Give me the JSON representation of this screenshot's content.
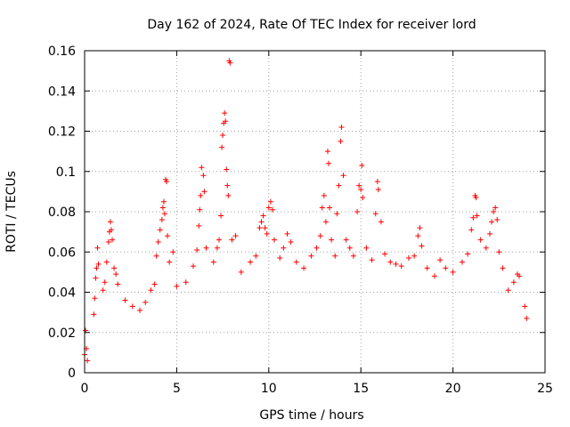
{
  "chart_data": {
    "type": "scatter",
    "title": "Day 162 of 2024, Rate Of TEC Index for receiver lord",
    "xlabel": "GPS time / hours",
    "ylabel": "ROTI / TECUs",
    "xlim": [
      0,
      25
    ],
    "ylim": [
      0,
      0.16
    ],
    "xticks": [
      0,
      5,
      10,
      15,
      20,
      25
    ],
    "xtick_labels": [
      "0",
      "5",
      "10",
      "15",
      "20",
      "25"
    ],
    "yticks": [
      0,
      0.02,
      0.04,
      0.06,
      0.08,
      0.1,
      0.12,
      0.14,
      0.16
    ],
    "ytick_labels": [
      "0",
      "0.02",
      "0.04",
      "0.06",
      "0.08",
      "0.1",
      "0.12",
      "0.14",
      "0.16"
    ],
    "grid": true,
    "marker": "+",
    "color": "#ff0000",
    "series": [
      {
        "name": "ROTI",
        "points": [
          [
            0.0,
            0.009
          ],
          [
            0.05,
            0.021
          ],
          [
            0.1,
            0.012
          ],
          [
            0.15,
            0.006
          ],
          [
            0.5,
            0.029
          ],
          [
            0.55,
            0.037
          ],
          [
            0.6,
            0.047
          ],
          [
            0.65,
            0.052
          ],
          [
            0.7,
            0.062
          ],
          [
            0.75,
            0.054
          ],
          [
            1.0,
            0.041
          ],
          [
            1.1,
            0.045
          ],
          [
            1.2,
            0.055
          ],
          [
            1.3,
            0.065
          ],
          [
            1.35,
            0.07
          ],
          [
            1.4,
            0.075
          ],
          [
            1.45,
            0.071
          ],
          [
            1.5,
            0.066
          ],
          [
            1.6,
            0.052
          ],
          [
            1.7,
            0.049
          ],
          [
            1.8,
            0.044
          ],
          [
            2.2,
            0.036
          ],
          [
            2.6,
            0.033
          ],
          [
            3.0,
            0.031
          ],
          [
            3.3,
            0.035
          ],
          [
            3.6,
            0.041
          ],
          [
            3.8,
            0.044
          ],
          [
            3.9,
            0.058
          ],
          [
            4.0,
            0.065
          ],
          [
            4.1,
            0.071
          ],
          [
            4.2,
            0.076
          ],
          [
            4.25,
            0.082
          ],
          [
            4.3,
            0.085
          ],
          [
            4.35,
            0.079
          ],
          [
            4.4,
            0.096
          ],
          [
            4.45,
            0.095
          ],
          [
            4.5,
            0.068
          ],
          [
            4.6,
            0.055
          ],
          [
            4.8,
            0.06
          ],
          [
            5.0,
            0.043
          ],
          [
            5.5,
            0.045
          ],
          [
            5.9,
            0.053
          ],
          [
            6.1,
            0.061
          ],
          [
            6.2,
            0.073
          ],
          [
            6.25,
            0.081
          ],
          [
            6.3,
            0.088
          ],
          [
            6.35,
            0.102
          ],
          [
            6.45,
            0.098
          ],
          [
            6.5,
            0.09
          ],
          [
            6.6,
            0.062
          ],
          [
            7.0,
            0.055
          ],
          [
            7.2,
            0.062
          ],
          [
            7.3,
            0.066
          ],
          [
            7.4,
            0.078
          ],
          [
            7.45,
            0.112
          ],
          [
            7.5,
            0.118
          ],
          [
            7.55,
            0.124
          ],
          [
            7.6,
            0.129
          ],
          [
            7.65,
            0.125
          ],
          [
            7.7,
            0.101
          ],
          [
            7.75,
            0.093
          ],
          [
            7.8,
            0.088
          ],
          [
            7.85,
            0.155
          ],
          [
            7.9,
            0.154
          ],
          [
            8.0,
            0.066
          ],
          [
            8.2,
            0.068
          ],
          [
            8.5,
            0.05
          ],
          [
            9.0,
            0.055
          ],
          [
            9.3,
            0.058
          ],
          [
            9.5,
            0.072
          ],
          [
            9.6,
            0.075
          ],
          [
            9.7,
            0.078
          ],
          [
            9.8,
            0.072
          ],
          [
            9.9,
            0.069
          ],
          [
            10.0,
            0.082
          ],
          [
            10.1,
            0.085
          ],
          [
            10.2,
            0.081
          ],
          [
            10.3,
            0.066
          ],
          [
            10.6,
            0.057
          ],
          [
            10.8,
            0.062
          ],
          [
            11.0,
            0.069
          ],
          [
            11.2,
            0.065
          ],
          [
            11.5,
            0.055
          ],
          [
            11.9,
            0.052
          ],
          [
            12.3,
            0.058
          ],
          [
            12.6,
            0.062
          ],
          [
            12.8,
            0.068
          ],
          [
            12.9,
            0.082
          ],
          [
            13.0,
            0.088
          ],
          [
            13.1,
            0.075
          ],
          [
            13.2,
            0.11
          ],
          [
            13.25,
            0.104
          ],
          [
            13.3,
            0.082
          ],
          [
            13.4,
            0.066
          ],
          [
            13.6,
            0.058
          ],
          [
            13.7,
            0.079
          ],
          [
            13.8,
            0.093
          ],
          [
            13.9,
            0.115
          ],
          [
            13.95,
            0.122
          ],
          [
            14.05,
            0.098
          ],
          [
            14.2,
            0.066
          ],
          [
            14.4,
            0.062
          ],
          [
            14.6,
            0.058
          ],
          [
            14.8,
            0.08
          ],
          [
            14.9,
            0.093
          ],
          [
            15.0,
            0.091
          ],
          [
            15.05,
            0.103
          ],
          [
            15.1,
            0.087
          ],
          [
            15.3,
            0.062
          ],
          [
            15.6,
            0.056
          ],
          [
            15.8,
            0.079
          ],
          [
            15.9,
            0.095
          ],
          [
            15.95,
            0.091
          ],
          [
            16.1,
            0.075
          ],
          [
            16.3,
            0.059
          ],
          [
            16.6,
            0.055
          ],
          [
            16.9,
            0.054
          ],
          [
            17.2,
            0.053
          ],
          [
            17.6,
            0.057
          ],
          [
            17.9,
            0.058
          ],
          [
            18.1,
            0.068
          ],
          [
            18.2,
            0.072
          ],
          [
            18.3,
            0.063
          ],
          [
            18.6,
            0.052
          ],
          [
            19.0,
            0.048
          ],
          [
            19.3,
            0.056
          ],
          [
            19.6,
            0.052
          ],
          [
            20.0,
            0.05
          ],
          [
            20.5,
            0.055
          ],
          [
            20.8,
            0.059
          ],
          [
            21.0,
            0.071
          ],
          [
            21.1,
            0.077
          ],
          [
            21.2,
            0.088
          ],
          [
            21.25,
            0.087
          ],
          [
            21.3,
            0.078
          ],
          [
            21.5,
            0.066
          ],
          [
            21.8,
            0.062
          ],
          [
            22.0,
            0.069
          ],
          [
            22.1,
            0.075
          ],
          [
            22.2,
            0.08
          ],
          [
            22.3,
            0.082
          ],
          [
            22.4,
            0.076
          ],
          [
            22.5,
            0.06
          ],
          [
            22.7,
            0.052
          ],
          [
            23.0,
            0.041
          ],
          [
            23.3,
            0.045
          ],
          [
            23.5,
            0.049
          ],
          [
            23.6,
            0.048
          ],
          [
            23.9,
            0.033
          ],
          [
            24.0,
            0.027
          ]
        ]
      }
    ]
  }
}
